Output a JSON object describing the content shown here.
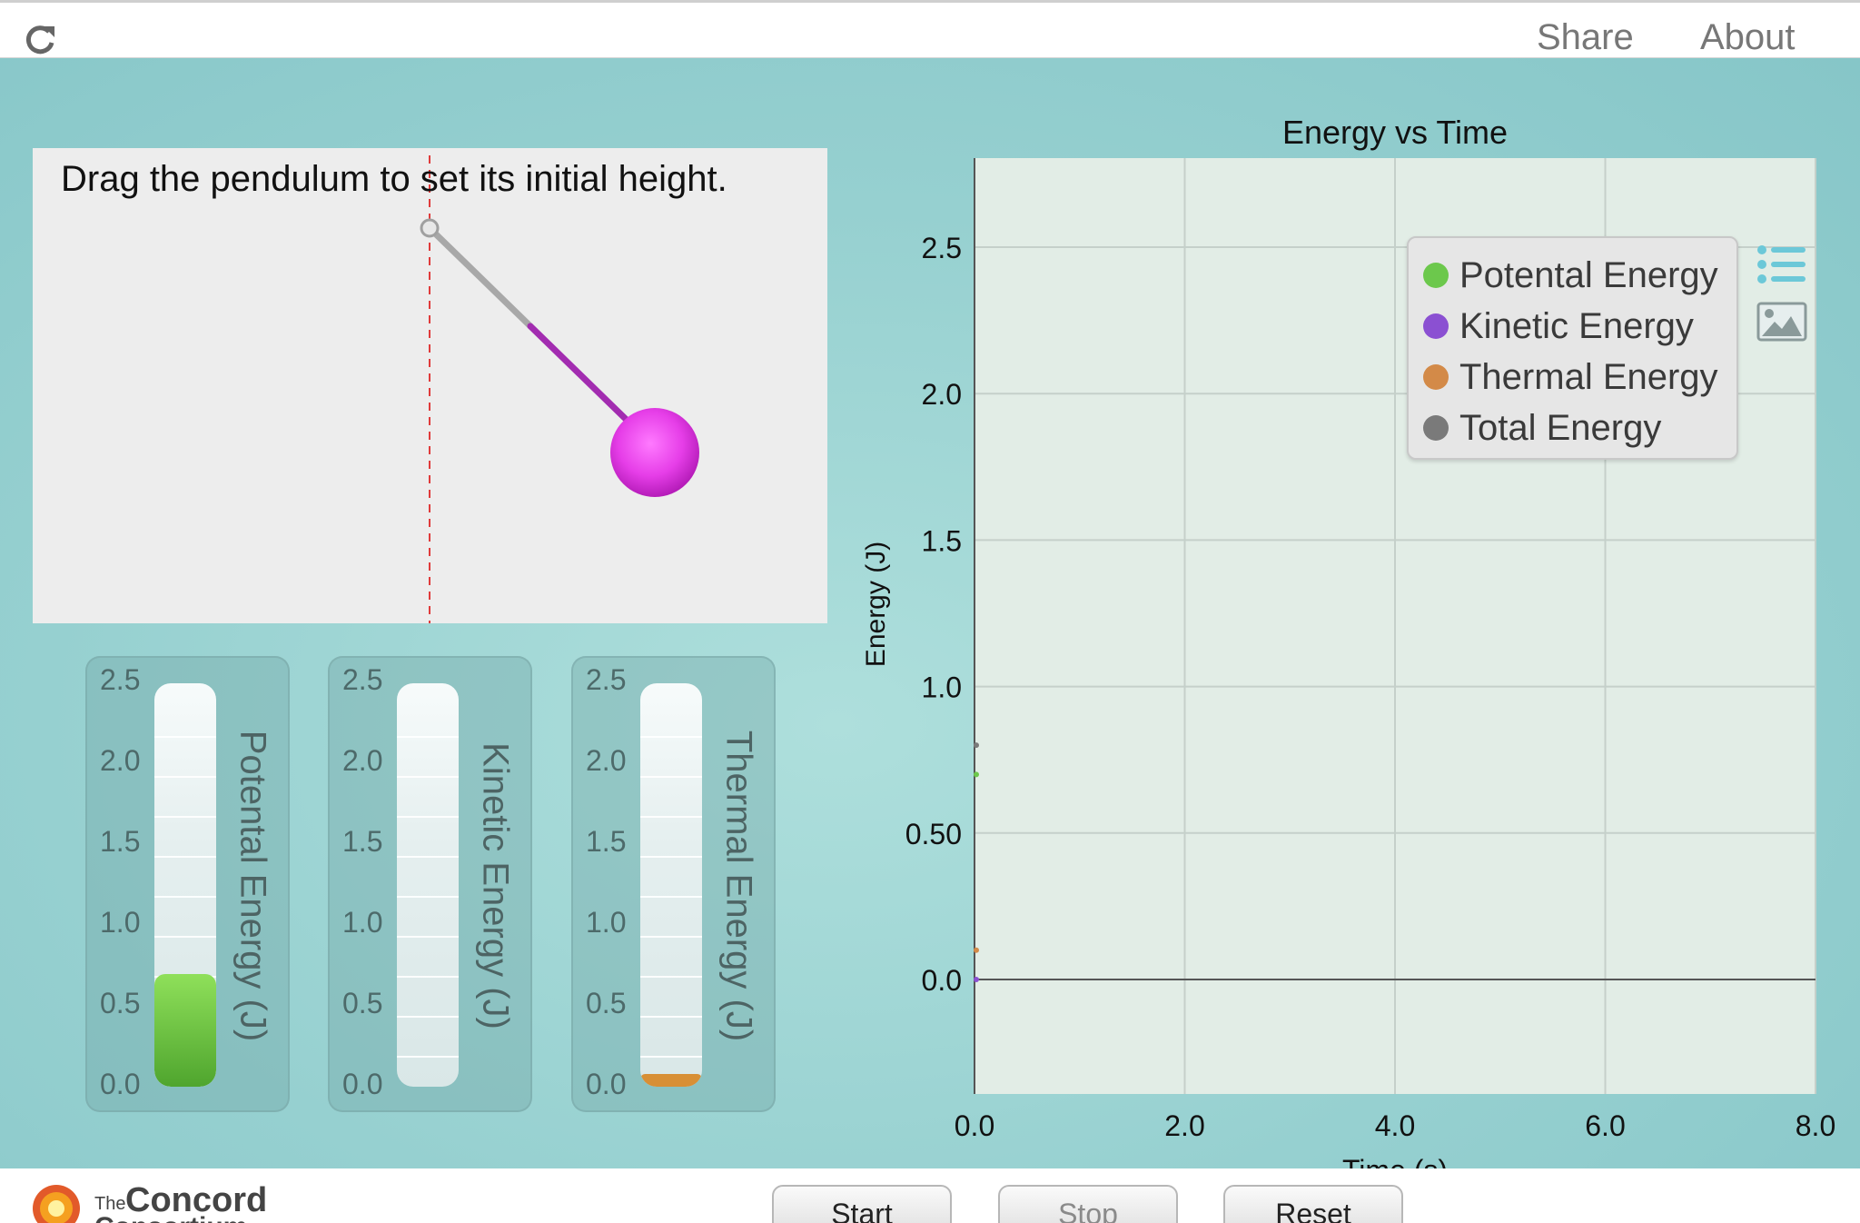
{
  "topbar": {
    "share": "Share",
    "about": "About"
  },
  "pendulum": {
    "instruction": "Drag the pendulum to set its initial height.",
    "bob_color": "#e040e8",
    "rod_color": "#a020a8"
  },
  "meters": [
    {
      "label": "Potental Energy (J)",
      "value": 0.7,
      "max": 2.5,
      "color": "#5ec03a"
    },
    {
      "label": "Kinetic Energy (J)",
      "value": 0.0,
      "max": 2.5,
      "color": "#8a4ad0"
    },
    {
      "label": "Thermal Energy (J)",
      "value": 0.05,
      "max": 2.5,
      "color": "#d58a3a"
    }
  ],
  "meter_ticks": [
    "2.5",
    "2.0",
    "1.5",
    "1.0",
    "0.5",
    "0.0"
  ],
  "chart_data": {
    "type": "line",
    "title": "Energy vs Time",
    "xlabel": "Time (s)",
    "ylabel": "Energy (J)",
    "xlim": [
      0,
      8
    ],
    "ylim": [
      0,
      2.8
    ],
    "xticks": [
      "0.0",
      "2.0",
      "4.0",
      "6.0",
      "8.0"
    ],
    "yticks": [
      "0.0",
      "0.50",
      "1.0",
      "1.5",
      "2.0",
      "2.5"
    ],
    "grid": true,
    "legend_position": "top-right",
    "series": [
      {
        "name": "Potental Energy",
        "color": "#6cc84c",
        "x": [
          0
        ],
        "y": [
          0.7
        ]
      },
      {
        "name": "Kinetic Energy",
        "color": "#8b50d2",
        "x": [
          0
        ],
        "y": [
          0.0
        ]
      },
      {
        "name": "Thermal Energy",
        "color": "#d38a48",
        "x": [
          0
        ],
        "y": [
          0.1
        ]
      },
      {
        "name": "Total Energy",
        "color": "#7a7a7a",
        "x": [
          0
        ],
        "y": [
          0.8
        ]
      }
    ]
  },
  "legend": [
    {
      "label": "Potental Energy",
      "color": "#6cc84c"
    },
    {
      "label": "Kinetic Energy",
      "color": "#8b50d2"
    },
    {
      "label": "Thermal Energy",
      "color": "#d38a48"
    },
    {
      "label": "Total Energy",
      "color": "#7a7a7a"
    }
  ],
  "logo": {
    "line1": "The",
    "line2": "Concord",
    "line3": "Consortium"
  },
  "buttons": {
    "start": "Start",
    "stop": "Stop",
    "reset": "Reset"
  }
}
